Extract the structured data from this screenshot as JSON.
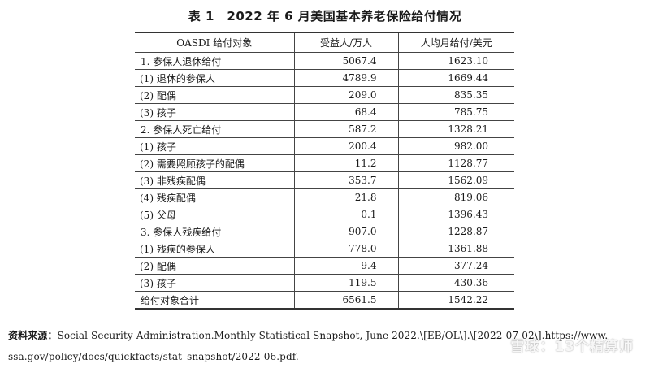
{
  "document": {
    "title": "表 1　2022 年 6 月美国基本养老保险给付情况",
    "headers": [
      "OASDI 给付对象",
      "受益人/万人",
      "人均月给付/美元"
    ],
    "rows": [
      {
        "label": "1. 参保人退休给付",
        "beneficiaries": "5067.4",
        "avg_monthly": "1623.10",
        "indent": false
      },
      {
        "label": "(1) 退休的参保人",
        "beneficiaries": "4789.9",
        "avg_monthly": "1669.44",
        "indent": true
      },
      {
        "label": "(2) 配偶",
        "beneficiaries": "209.0",
        "avg_monthly": "835.35",
        "indent": true
      },
      {
        "label": "(3) 孩子",
        "beneficiaries": "68.4",
        "avg_monthly": "785.75",
        "indent": true
      },
      {
        "label": "2. 参保人死亡给付",
        "beneficiaries": "587.2",
        "avg_monthly": "1328.21",
        "indent": false
      },
      {
        "label": "(1) 孩子",
        "beneficiaries": "200.4",
        "avg_monthly": "982.00",
        "indent": true
      },
      {
        "label": "(2) 需要照顾孩子的配偶",
        "beneficiaries": "11.2",
        "avg_monthly": "1128.77",
        "indent": true
      },
      {
        "label": "(3) 非残疾配偶",
        "beneficiaries": "353.7",
        "avg_monthly": "1562.09",
        "indent": true
      },
      {
        "label": "(4) 残疾配偶",
        "beneficiaries": "21.8",
        "avg_monthly": "819.06",
        "indent": true
      },
      {
        "label": "(5) 父母",
        "beneficiaries": "0.1",
        "avg_monthly": "1396.43",
        "indent": true
      },
      {
        "label": "3. 参保人残疾给付",
        "beneficiaries": "907.0",
        "avg_monthly": "1228.87",
        "indent": false
      },
      {
        "label": "(1) 残疾的参保人",
        "beneficiaries": "778.0",
        "avg_monthly": "1361.88",
        "indent": true
      },
      {
        "label": "(2) 配偶",
        "beneficiaries": "9.4",
        "avg_monthly": "377.24",
        "indent": true
      },
      {
        "label": "(3) 孩子",
        "beneficiaries": "119.5",
        "avg_monthly": "430.36",
        "indent": true
      },
      {
        "label": "给付对象合计",
        "beneficiaries": "6561.5",
        "avg_monthly": "1542.22",
        "indent": false
      }
    ],
    "source": {
      "label": "资料来源：",
      "line1": "Social Security Administration.Monthly Statistical Snapshot, June 2022.\\[EB/OL\\].\\[2022-07-02\\].https://www.",
      "line2": "ssa.gov/policy/docs/quickfacts/stat_snapshot/2022-06.pdf."
    },
    "watermark": "雪球：13个精算师"
  }
}
